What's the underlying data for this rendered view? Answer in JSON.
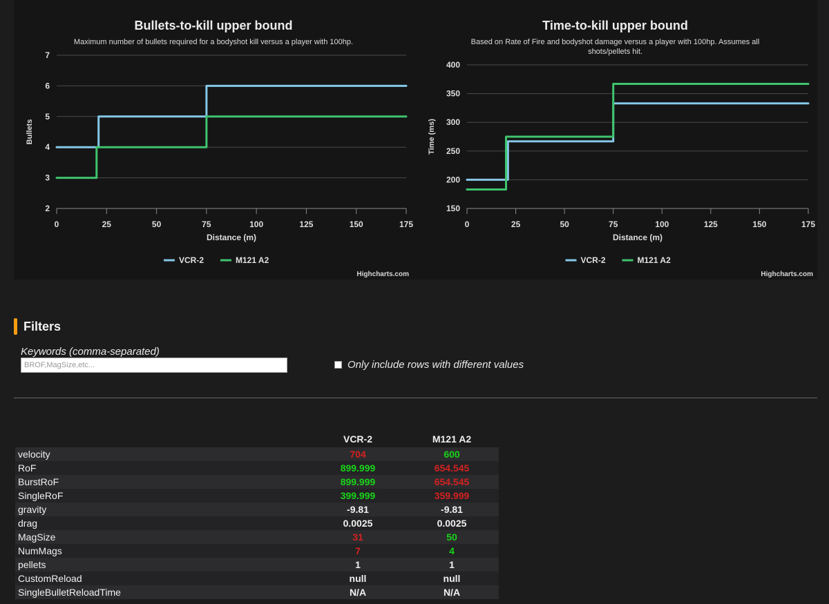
{
  "colors": {
    "series1": "#86c8e8",
    "series2": "#3fc46e",
    "better": "#19d419",
    "worse": "#d42121",
    "neutral": "#f0f0f0",
    "accent": "#f39c12",
    "grid": "#4a4a4a"
  },
  "credits_text": "Highcharts.com",
  "chart_data": [
    {
      "type": "line",
      "step": true,
      "title": "Bullets-to-kill upper bound",
      "subtitle": "Maximum number of bullets required for a bodyshot kill versus a player with 100hp.",
      "xlabel": "Distance (m)",
      "ylabel": "Bullets",
      "xlim": [
        0,
        175
      ],
      "ylim": [
        2,
        7
      ],
      "xticks": [
        0,
        25,
        50,
        75,
        100,
        125,
        150,
        175
      ],
      "yticks": [
        2,
        3,
        4,
        5,
        6,
        7
      ],
      "grid": true,
      "legend": "bottom-center",
      "series": [
        {
          "name": "VCR-2",
          "x": [
            0,
            21,
            21,
            75,
            75,
            175
          ],
          "y": [
            4,
            4,
            5,
            5,
            6,
            6
          ]
        },
        {
          "name": "M121 A2",
          "x": [
            0,
            20,
            20,
            75,
            75,
            175
          ],
          "y": [
            3,
            3,
            4,
            4,
            5,
            5
          ]
        }
      ]
    },
    {
      "type": "line",
      "step": true,
      "title": "Time-to-kill upper bound",
      "subtitle": "Based on Rate of Fire and bodyshot damage versus a player with 100hp. Assumes all shots/pellets hit.",
      "xlabel": "Distance (m)",
      "ylabel": "Time (ms)",
      "xlim": [
        0,
        175
      ],
      "ylim": [
        150,
        400
      ],
      "xticks": [
        0,
        25,
        50,
        75,
        100,
        125,
        150,
        175
      ],
      "yticks": [
        150,
        200,
        250,
        300,
        350,
        400
      ],
      "grid": true,
      "legend": "bottom-center",
      "series": [
        {
          "name": "VCR-2",
          "x": [
            0,
            21,
            21,
            75,
            75,
            175
          ],
          "y": [
            200,
            200,
            267,
            267,
            333,
            333
          ]
        },
        {
          "name": "M121 A2",
          "x": [
            0,
            20,
            20,
            75,
            75,
            175
          ],
          "y": [
            183,
            183,
            275,
            275,
            367,
            367
          ]
        }
      ]
    }
  ],
  "filters": {
    "title": "Filters",
    "keywords_label": "Keywords (comma-separated)",
    "keywords_placeholder": "BROF,MagSize,etc...",
    "keywords_value": "",
    "only_different_label": "Only include rows with different values",
    "only_different_checked": false
  },
  "table": {
    "columns": [
      "VCR-2",
      "M121 A2"
    ],
    "rows": [
      {
        "name": "velocity",
        "values": [
          "704",
          "600"
        ],
        "status": [
          "worse",
          "better"
        ]
      },
      {
        "name": "RoF",
        "values": [
          "899.999",
          "654.545"
        ],
        "status": [
          "better",
          "worse"
        ]
      },
      {
        "name": "BurstRoF",
        "values": [
          "899.999",
          "654.545"
        ],
        "status": [
          "better",
          "worse"
        ]
      },
      {
        "name": "SingleRoF",
        "values": [
          "399.999",
          "359.999"
        ],
        "status": [
          "better",
          "worse"
        ]
      },
      {
        "name": "gravity",
        "values": [
          "-9.81",
          "-9.81"
        ],
        "status": [
          "neutral",
          "neutral"
        ]
      },
      {
        "name": "drag",
        "values": [
          "0.0025",
          "0.0025"
        ],
        "status": [
          "neutral",
          "neutral"
        ]
      },
      {
        "name": "MagSize",
        "values": [
          "31",
          "50"
        ],
        "status": [
          "worse",
          "better"
        ]
      },
      {
        "name": "NumMags",
        "values": [
          "7",
          "4"
        ],
        "status": [
          "worse",
          "better"
        ]
      },
      {
        "name": "pellets",
        "values": [
          "1",
          "1"
        ],
        "status": [
          "neutral",
          "neutral"
        ]
      },
      {
        "name": "CustomReload",
        "values": [
          "null",
          "null"
        ],
        "status": [
          "neutral",
          "neutral"
        ]
      },
      {
        "name": "SingleBulletReloadTime",
        "values": [
          "N/A",
          "N/A"
        ],
        "status": [
          "neutral",
          "neutral"
        ]
      }
    ]
  }
}
